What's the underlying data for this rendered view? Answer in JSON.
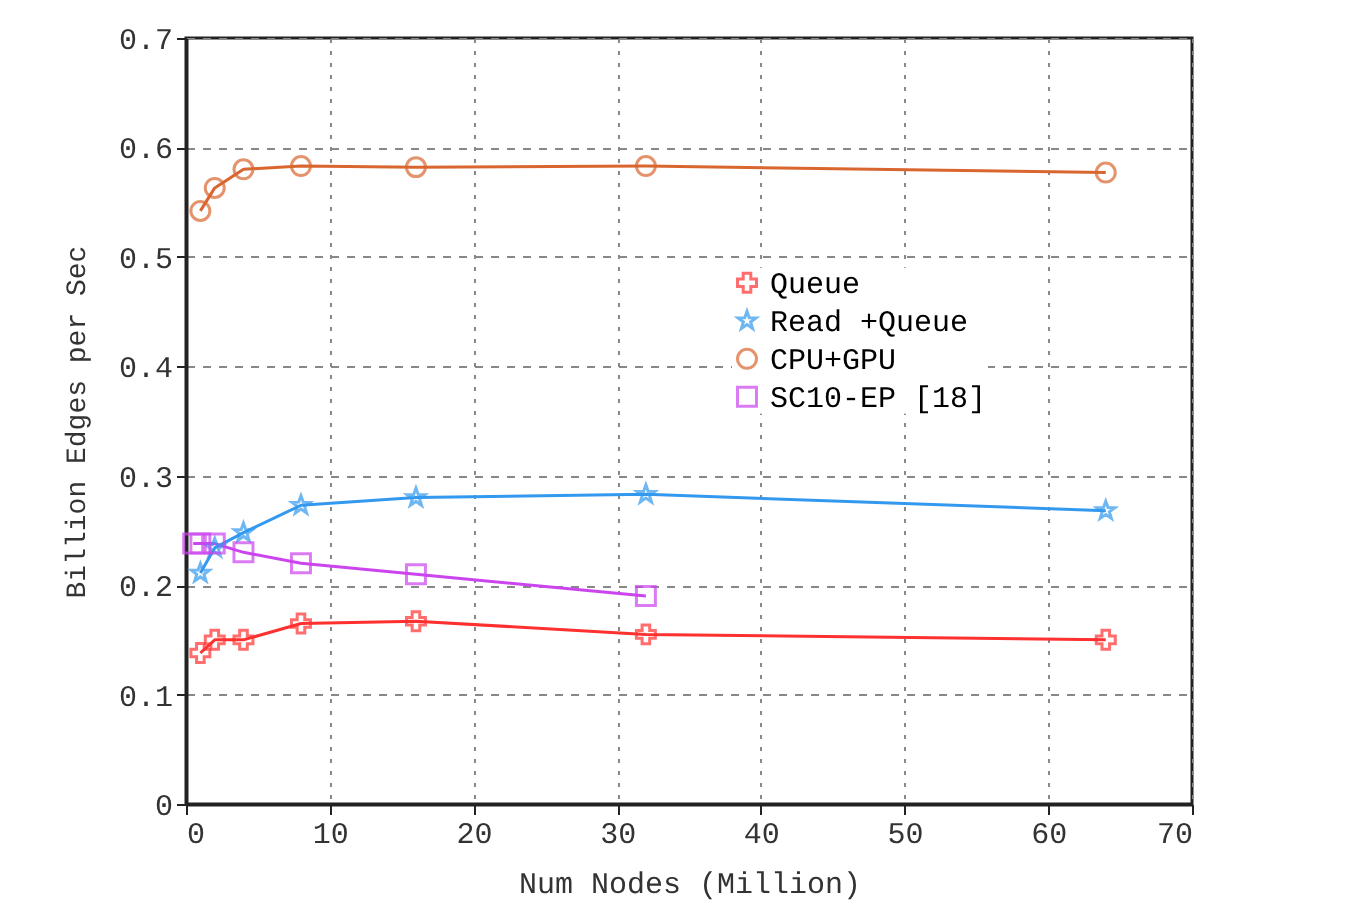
{
  "chart_data": {
    "type": "line",
    "xlabel": "Num Nodes (Million)",
    "ylabel": "Billion Edges per Sec",
    "xlim": [
      0,
      70
    ],
    "xticks": [
      0,
      10,
      20,
      30,
      40,
      50,
      60,
      70
    ],
    "ylim": [
      0,
      0.7
    ],
    "yticks": [
      0,
      0.1,
      0.2,
      0.3,
      0.4,
      0.5,
      0.6,
      0.7
    ],
    "grid": true,
    "legend": "right",
    "series": [
      {
        "name": "Queue",
        "color": "#ff3030",
        "marker": "cross",
        "x": [
          1,
          2,
          4,
          8,
          16,
          32,
          64
        ],
        "values": [
          0.138,
          0.15,
          0.15,
          0.165,
          0.167,
          0.155,
          0.15
        ]
      },
      {
        "name": "Read +Queue",
        "color": "#3399ee",
        "marker": "star",
        "x": [
          1,
          2,
          4,
          8,
          16,
          32,
          64
        ],
        "values": [
          0.211,
          0.234,
          0.248,
          0.273,
          0.28,
          0.283,
          0.268
        ]
      },
      {
        "name": "CPU+GPU",
        "color": "#d9662e",
        "marker": "circle",
        "x": [
          1,
          2,
          4,
          8,
          16,
          32,
          64
        ],
        "values": [
          0.542,
          0.563,
          0.58,
          0.583,
          0.582,
          0.583,
          0.577
        ]
      },
      {
        "name": "SC10-EP [18]",
        "color": "#cc44ee",
        "marker": "square",
        "x": [
          0.5,
          1,
          2,
          4,
          8,
          16,
          32
        ],
        "values": [
          0.238,
          0.238,
          0.238,
          0.23,
          0.22,
          0.21,
          0.19
        ]
      }
    ]
  }
}
